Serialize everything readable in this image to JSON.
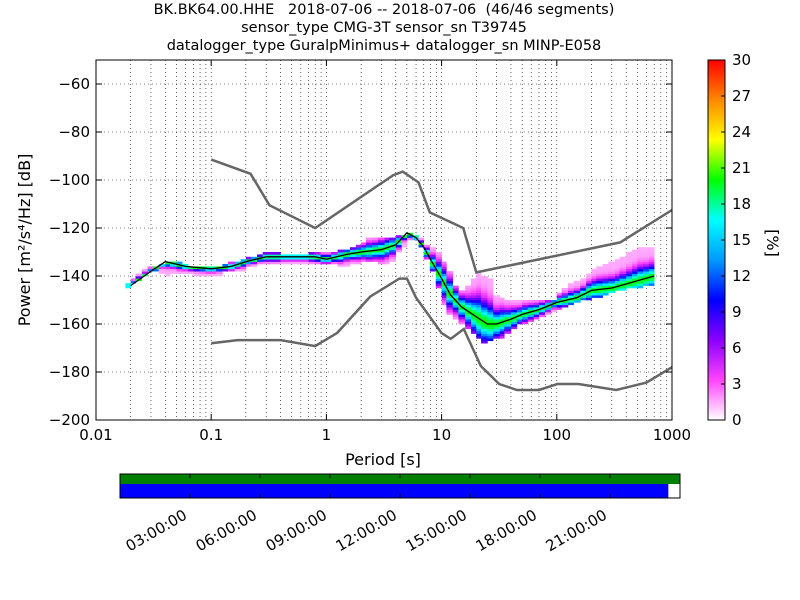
{
  "title_lines": [
    "BK.BK64.00.HHE   2018-07-06 -- 2018-07-06  (46/46 segments)",
    "sensor_type CMG-3T sensor_sn T39745",
    "datalogger_type GuralpMinimus+ datalogger_sn MINP-E058"
  ],
  "chart_data": [
    {
      "type": "heatmap",
      "xlabel": "Period [s]",
      "ylabel": "Power [m²/s⁴/Hz] [dB]",
      "xscale": "log",
      "xlim": [
        0.01,
        1000
      ],
      "ylim": [
        -200,
        -50
      ],
      "x_ticks": [
        0.01,
        0.1,
        1,
        10,
        100,
        1000
      ],
      "x_tick_labels": [
        "0.01",
        "0.1",
        "1",
        "10",
        "100",
        "1000"
      ],
      "y_ticks": [
        -200,
        -180,
        -160,
        -140,
        -120,
        -100,
        -80,
        -60
      ],
      "y_tick_labels": [
        "−200",
        "−180",
        "−160",
        "−140",
        "−120",
        "−100",
        "−80",
        "−60"
      ],
      "grid": "dotted",
      "colorbar": {
        "label": "[%]",
        "range": [
          0,
          30
        ],
        "ticks": [
          0,
          3,
          6,
          9,
          12,
          15,
          18,
          21,
          24,
          27,
          30
        ],
        "tick_labels": [
          "0",
          "3",
          "6",
          "9",
          "12",
          "15",
          "18",
          "21",
          "24",
          "27",
          "30"
        ],
        "colormap": [
          "#ffffff",
          "#ff44ff",
          "#8a00ff",
          "#0000ff",
          "#0099ff",
          "#00ffff",
          "#00ff00",
          "#ffff00",
          "#ff8800",
          "#ff0000"
        ]
      },
      "noise_models": {
        "high": {
          "x": [
            0.1,
            0.22,
            0.32,
            0.8,
            3.8,
            4.6,
            6.3,
            7.9,
            15.4,
            20,
            354.8,
            1000
          ],
          "y": [
            -91.5,
            -97.4,
            -110.5,
            -120,
            -98,
            -96.5,
            -101,
            -113.5,
            -120,
            -138.5,
            -126,
            -112.5
          ]
        },
        "low": {
          "x": [
            0.1,
            0.17,
            0.4,
            0.8,
            1.24,
            2.4,
            4.3,
            5,
            6,
            10,
            12,
            15.6,
            21.9,
            31.6,
            45,
            70,
            101,
            154,
            328,
            600,
            1000
          ],
          "y": [
            -168,
            -166.7,
            -166.7,
            -169.2,
            -163.7,
            -148.6,
            -141.1,
            -141.1,
            -149,
            -163.8,
            -166.2,
            -162.1,
            -177.5,
            -185,
            -187.5,
            -187.5,
            -185,
            -185,
            -187.5,
            -184.4,
            -178
          ]
        }
      },
      "mode_line": {
        "x": [
          0.02,
          0.03,
          0.04,
          0.06,
          0.1,
          0.15,
          0.2,
          0.3,
          0.5,
          0.8,
          1,
          1.5,
          2,
          3,
          4,
          5,
          6,
          7,
          8,
          10,
          12,
          15,
          20,
          25,
          30,
          40,
          50,
          70,
          100,
          150,
          200,
          300,
          500,
          700
        ],
        "y": [
          -144,
          -138,
          -134,
          -136,
          -137,
          -136,
          -134,
          -132,
          -132,
          -132,
          -133,
          -131,
          -130,
          -129,
          -127,
          -122,
          -124,
          -128,
          -133,
          -141,
          -148,
          -153,
          -157,
          -160,
          -160,
          -158,
          -156,
          -154,
          -151,
          -149,
          -146,
          -145,
          -142,
          -140
        ]
      },
      "psd_density": {
        "x_bins": [
          0.018,
          0.02,
          0.022,
          0.025,
          0.028,
          0.031,
          0.035,
          0.04,
          0.044,
          0.05,
          0.056,
          0.063,
          0.07,
          0.079,
          0.089,
          0.1,
          0.11,
          0.125,
          0.14,
          0.16,
          0.18,
          0.2,
          0.22,
          0.25,
          0.28,
          0.32,
          0.35,
          0.4,
          0.45,
          0.5,
          0.56,
          0.63,
          0.7,
          0.79,
          0.89,
          1,
          1.1,
          1.25,
          1.4,
          1.6,
          1.8,
          2,
          2.2,
          2.5,
          2.8,
          3.2,
          3.5,
          4,
          4.5,
          5,
          5.6,
          6.3,
          7,
          7.9,
          8.9,
          10,
          11,
          12.5,
          14,
          16,
          18,
          20,
          22,
          25,
          28,
          32,
          35,
          40,
          45,
          50,
          56,
          63,
          70,
          79,
          89,
          100,
          110,
          125,
          140,
          160,
          180,
          200,
          220,
          250,
          280,
          320,
          350,
          400,
          450,
          500,
          560,
          630,
          700
        ],
        "ymin_bins": [
          -145,
          -143,
          -142,
          -140,
          -138,
          -136,
          -135,
          -134,
          -134,
          -134,
          -135,
          -136,
          -136,
          -136,
          -136,
          -136,
          -136,
          -135,
          -134,
          -134,
          -133,
          -132,
          -132,
          -131,
          -130,
          -130,
          -130,
          -131,
          -131,
          -131,
          -131,
          -131,
          -130,
          -130,
          -130,
          -130,
          -130,
          -129,
          -129,
          -128,
          -127,
          -126,
          -124,
          -124,
          -124,
          -124,
          -124,
          -123,
          -123,
          -122,
          -123,
          -124,
          -127,
          -128,
          -130,
          -134,
          -138,
          -144,
          -146,
          -144,
          -141,
          -138,
          -140,
          -141,
          -148,
          -149,
          -150,
          -150,
          -150,
          -150,
          -150,
          -150,
          -150,
          -150,
          -150,
          -147,
          -145,
          -143,
          -142,
          -141,
          -139,
          -137,
          -136,
          -135,
          -134,
          -133,
          -132,
          -130,
          -129,
          -128,
          -128,
          -128,
          -137
        ],
        "ymax_bins": [
          -143,
          -141,
          -139,
          -137,
          -136,
          -138,
          -139,
          -140,
          -139,
          -139,
          -139,
          -139,
          -140,
          -140,
          -140,
          -140,
          -140,
          -138,
          -138,
          -138,
          -138,
          -136,
          -136,
          -135,
          -135,
          -135,
          -135,
          -135,
          -135,
          -135,
          -135,
          -135,
          -135,
          -135,
          -135,
          -135,
          -135,
          -136,
          -136,
          -135,
          -135,
          -134,
          -134,
          -134,
          -135,
          -135,
          -134,
          -130,
          -128,
          -125,
          -125,
          -128,
          -133,
          -138,
          -145,
          -152,
          -156,
          -158,
          -160,
          -162,
          -164,
          -166,
          -168,
          -167,
          -166,
          -166,
          -164,
          -162,
          -160,
          -160,
          -159,
          -158,
          -157,
          -156,
          -155,
          -154,
          -153,
          -152,
          -151,
          -150,
          -150,
          -149,
          -149,
          -148,
          -147,
          -146,
          -146,
          -145,
          -145,
          -145,
          -144,
          -144,
          -144
        ]
      }
    },
    {
      "type": "timeline",
      "range_hours": [
        0,
        24
      ],
      "tick_hours": [
        3,
        6,
        9,
        12,
        15,
        18,
        21
      ],
      "tick_labels": [
        "03:00:00",
        "06:00:00",
        "09:00:00",
        "12:00:00",
        "15:00:00",
        "18:00:00",
        "21:00:00"
      ],
      "data_coverage": [
        [
          0,
          24
        ]
      ],
      "psd_coverage": [
        [
          0,
          23.5
        ]
      ],
      "colors": {
        "data": "#008000",
        "psd": "#0000ff"
      }
    }
  ],
  "colors": {
    "axes": "#000000",
    "noise_model": "#666666",
    "mode_line": "#000000",
    "grid": "#000000"
  }
}
